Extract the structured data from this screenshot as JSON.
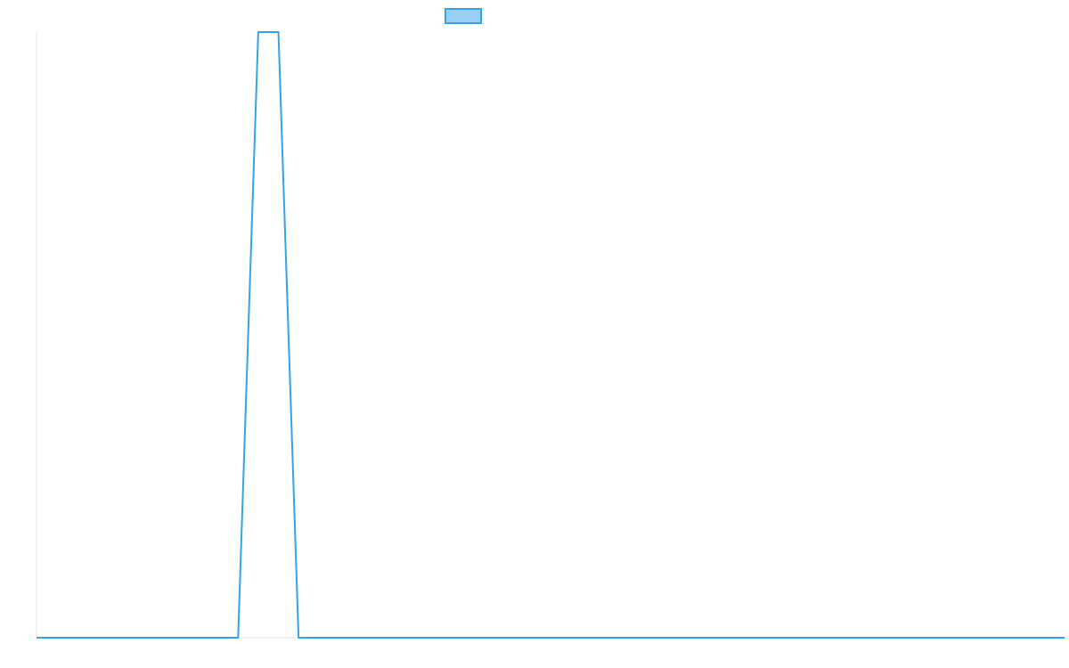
{
  "chart_data": {
    "type": "line",
    "series": [
      {
        "color": "#36a2eb",
        "fill": "#9ad0f5",
        "values": [
          0,
          0,
          0,
          0,
          0,
          0,
          0,
          0,
          0,
          0,
          0,
          1,
          1,
          0,
          0,
          0,
          0,
          0,
          0,
          0,
          0,
          0,
          0,
          0,
          0,
          0,
          0,
          0,
          0,
          0,
          0,
          0,
          0,
          0,
          0,
          0,
          0,
          0,
          0,
          0,
          0,
          0,
          0,
          0,
          0,
          0,
          0,
          0,
          0,
          0,
          0,
          0
        ]
      }
    ],
    "ylim": [
      0,
      1
    ],
    "legend": "top",
    "grid": false
  }
}
